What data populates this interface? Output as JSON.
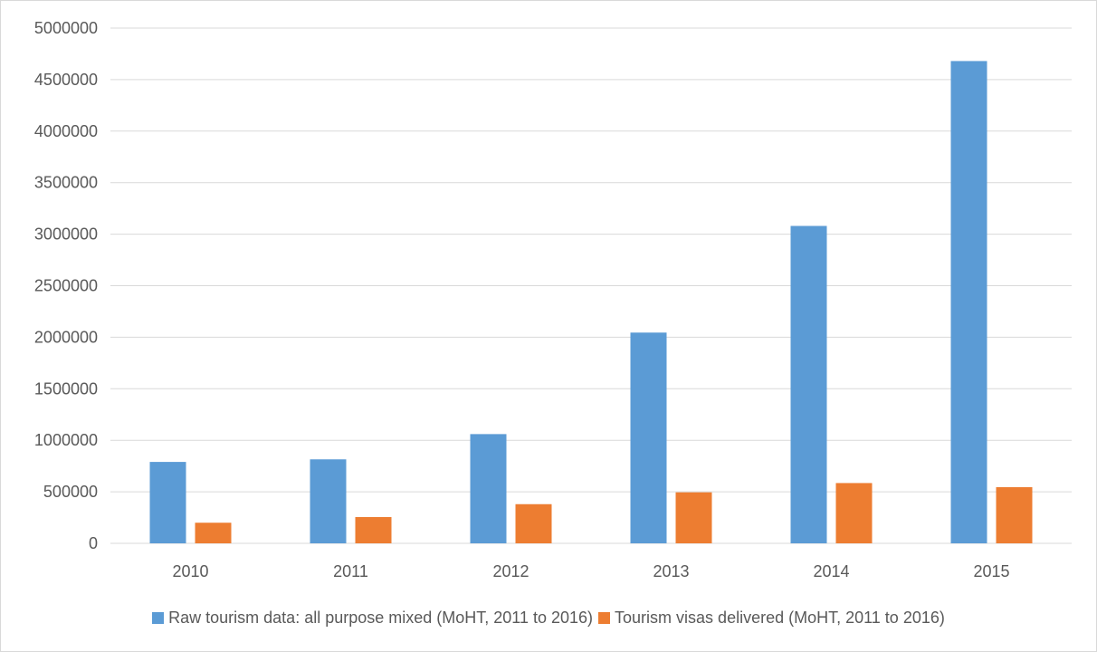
{
  "chart_data": {
    "type": "bar",
    "categories": [
      "2010",
      "2011",
      "2012",
      "2013",
      "2014",
      "2015"
    ],
    "series": [
      {
        "name": "Raw tourism data: all purpose mixed (MoHT, 2011 to 2016)",
        "color": "#5b9bd5",
        "values": [
          790000,
          815000,
          1060000,
          2045000,
          3080000,
          4680000
        ]
      },
      {
        "name": "Tourism visas delivered (MoHT, 2011 to 2016)",
        "color": "#ed7d31",
        "values": [
          200000,
          255000,
          380000,
          495000,
          585000,
          545000
        ]
      }
    ],
    "ylim": [
      0,
      5000000
    ],
    "yticks": [
      "0",
      "500000",
      "1000000",
      "1500000",
      "2000000",
      "2500000",
      "3000000",
      "3500000",
      "4000000",
      "4500000",
      "5000000"
    ],
    "grid": true,
    "legend_position": "bottom"
  }
}
